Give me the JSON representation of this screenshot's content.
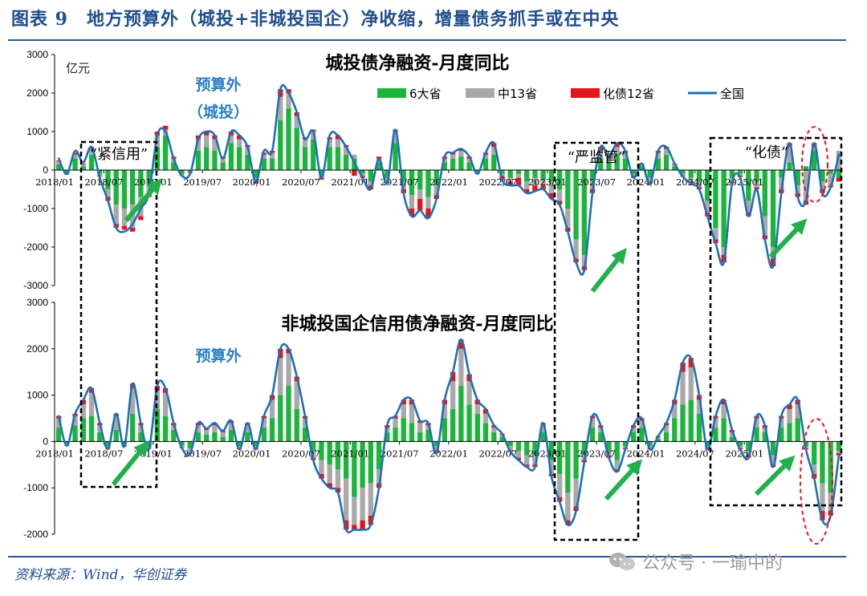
{
  "figure_title": "图表 9　地方预算外（城投+非城投国企）净收缩，增量债务抓手或在中央",
  "source": "资料来源：Wind，华创证券",
  "watermark": "公众号 · 一瑜中的",
  "colors": {
    "s6": "#1cb53c",
    "s13": "#a9a9a9",
    "s12": "#e3141c",
    "line": "#1f6fb5",
    "arrow": "#22b04b",
    "ellipse": "#e3141c",
    "title_blue": "#1f4e8c",
    "anno_blue": "#2a7fc4"
  },
  "chart_data": [
    {
      "type": "bar",
      "title": "城投债净融资-月度同比",
      "unit_label": "亿元",
      "annotation": "预算外\n（城投）",
      "ylim": [
        -3000,
        3000
      ],
      "yticks": [
        -3000,
        -2000,
        -1000,
        0,
        1000,
        2000,
        3000
      ],
      "xtick_labels": [
        "2018/01",
        "2018/07",
        "2019/01",
        "2019/07",
        "2020/01",
        "2020/07",
        "2021/01",
        "2021/07",
        "2022/01",
        "2022/07",
        "2023/01",
        "2023/07",
        "2024/01",
        "2024/07",
        "2025/01"
      ],
      "legend": [
        "6大省",
        "中13省",
        "化债12省",
        "全国"
      ],
      "box_labels": [
        "“紧信用”",
        "“严监管”",
        "“化债”"
      ],
      "series": [
        {
          "name": "6大省",
          "values": [
            150,
            -80,
            300,
            100,
            400,
            -100,
            -500,
            -900,
            -1000,
            -900,
            -700,
            -400,
            600,
            900,
            200,
            -100,
            -50,
            500,
            600,
            500,
            200,
            700,
            600,
            400,
            -200,
            300,
            300,
            1300,
            1600,
            1100,
            600,
            800,
            -150,
            600,
            600,
            400,
            300,
            -100,
            -300,
            200,
            -200,
            700,
            -300,
            -650,
            -500,
            -700,
            -400,
            200,
            300,
            350,
            200,
            -50,
            300,
            400,
            -100,
            -200,
            -100,
            -300,
            -200,
            -250,
            -300,
            -500,
            -1000,
            -1800,
            -2200,
            -300,
            300,
            200,
            400,
            300,
            -100,
            100,
            -200,
            300,
            400,
            100,
            -100,
            -200,
            -300,
            -800,
            -1500,
            -2000,
            -200,
            -100,
            -800,
            -300,
            -1200,
            -2000,
            -200,
            200,
            -400,
            100,
            500,
            -300,
            -100,
            -200
          ]
        },
        {
          "name": "中13省",
          "values": [
            80,
            -30,
            100,
            50,
            150,
            -50,
            -200,
            -500,
            -450,
            -600,
            -500,
            -250,
            300,
            150,
            100,
            -30,
            -30,
            300,
            300,
            300,
            100,
            200,
            200,
            200,
            -100,
            100,
            150,
            600,
            400,
            300,
            200,
            200,
            -50,
            200,
            200,
            200,
            100,
            -50,
            -100,
            100,
            -100,
            300,
            -200,
            -350,
            -250,
            -300,
            -250,
            100,
            100,
            150,
            100,
            -30,
            100,
            200,
            -50,
            -100,
            -100,
            -200,
            -200,
            -150,
            -300,
            -300,
            -500,
            -500,
            -300,
            -200,
            200,
            100,
            200,
            150,
            -50,
            50,
            -100,
            150,
            150,
            50,
            -50,
            -100,
            -150,
            -300,
            -300,
            -200,
            -100,
            -50,
            -300,
            -150,
            -500,
            -300,
            -300,
            400,
            -200,
            -800,
            100,
            -200,
            -300,
            500
          ]
        },
        {
          "name": "化债12省",
          "values": [
            20,
            -10,
            50,
            20,
            50,
            -20,
            -100,
            -100,
            -100,
            -100,
            -100,
            -50,
            100,
            100,
            50,
            -10,
            -10,
            100,
            100,
            100,
            50,
            100,
            100,
            50,
            -50,
            50,
            50,
            200,
            100,
            100,
            50,
            50,
            -50,
            50,
            100,
            50,
            -150,
            -50,
            -100,
            50,
            -50,
            50,
            -100,
            -200,
            -300,
            -250,
            -100,
            50,
            50,
            50,
            50,
            -10,
            50,
            100,
            -100,
            -100,
            -200,
            -100,
            -150,
            -100,
            -150,
            -100,
            -100,
            -100,
            -100,
            -100,
            100,
            50,
            100,
            50,
            -50,
            20,
            -50,
            50,
            50,
            20,
            -20,
            -50,
            -50,
            -100,
            -100,
            -200,
            -50,
            -30,
            -100,
            -50,
            -100,
            -200,
            -100,
            100,
            -100,
            -100,
            100,
            -100,
            -50,
            -100
          ]
        },
        {
          "name": "全国",
          "type": "line",
          "values": [
            300,
            -100,
            500,
            200,
            600,
            -200,
            -800,
            -1500,
            -1600,
            -1400,
            -1000,
            -600,
            900,
            1000,
            300,
            -150,
            -100,
            800,
            1000,
            900,
            300,
            1000,
            900,
            600,
            -300,
            500,
            500,
            2100,
            2000,
            1500,
            800,
            1000,
            -200,
            900,
            900,
            600,
            200,
            -200,
            -500,
            300,
            -350,
            1050,
            -600,
            -1200,
            -1050,
            -1250,
            -750,
            350,
            450,
            550,
            350,
            -100,
            450,
            700,
            -250,
            -400,
            -400,
            -600,
            -550,
            -500,
            -750,
            -900,
            -1600,
            -2400,
            -2600,
            -600,
            600,
            350,
            700,
            500,
            -200,
            170,
            -350,
            500,
            600,
            170,
            -170,
            -350,
            -500,
            -1200,
            -1900,
            -2400,
            -350,
            -200,
            -1200,
            -500,
            -1800,
            -2500,
            -600,
            700,
            -700,
            -800,
            700,
            -600,
            -450,
            400
          ]
        }
      ]
    },
    {
      "type": "bar",
      "title": "非城投国企信用债净融资-月度同比",
      "annotation": "预算外",
      "ylim": [
        -2000,
        3000
      ],
      "yticks": [
        -2000,
        -1000,
        0,
        1000,
        2000,
        3000
      ],
      "xtick_labels": [
        "2018/01",
        "2018/07",
        "2019/01",
        "2019/07",
        "2020/01",
        "2020/07",
        "2021/01",
        "2021/07",
        "2022/01",
        "2022/07",
        "2023/01",
        "2023/07",
        "2024/01",
        "2024/07",
        "2025/01"
      ],
      "series": [
        {
          "name": "6大省",
          "values": [
            300,
            -50,
            350,
            500,
            550,
            200,
            -100,
            250,
            -50,
            600,
            200,
            -100,
            700,
            550,
            250,
            -80,
            -150,
            200,
            150,
            200,
            100,
            250,
            -100,
            200,
            -100,
            300,
            500,
            1000,
            1200,
            700,
            300,
            -200,
            -400,
            -500,
            -600,
            -800,
            -1200,
            -1000,
            -900,
            -600,
            200,
            300,
            500,
            400,
            200,
            250,
            -100,
            500,
            700,
            1200,
            800,
            600,
            400,
            200,
            100,
            -100,
            -200,
            -300,
            -300,
            200,
            -400,
            -700,
            -1100,
            -800,
            -300,
            300,
            200,
            -200,
            -400,
            -100,
            200,
            300,
            -100,
            50,
            200,
            500,
            800,
            900,
            600,
            -100,
            300,
            500,
            100,
            -100,
            -200,
            300,
            200,
            -300,
            300,
            400,
            500,
            -100,
            -500,
            -900,
            -1100,
            -200
          ]
        },
        {
          "name": "中13省",
          "values": [
            200,
            -30,
            200,
            300,
            500,
            150,
            -50,
            300,
            -50,
            550,
            150,
            -50,
            400,
            500,
            100,
            -50,
            -100,
            150,
            100,
            150,
            100,
            150,
            -50,
            150,
            -50,
            200,
            400,
            800,
            700,
            600,
            200,
            -150,
            -300,
            -400,
            -400,
            -900,
            -600,
            -700,
            -700,
            -300,
            100,
            200,
            300,
            400,
            200,
            100,
            -100,
            300,
            600,
            800,
            500,
            200,
            200,
            100,
            50,
            -100,
            -150,
            -200,
            -200,
            150,
            -300,
            -500,
            -600,
            -600,
            -100,
            200,
            100,
            -100,
            -200,
            -50,
            100,
            150,
            -50,
            50,
            150,
            300,
            700,
            700,
            300,
            -50,
            200,
            300,
            100,
            -50,
            -100,
            200,
            100,
            -200,
            200,
            300,
            300,
            -50,
            -200,
            -600,
            -400,
            -50
          ]
        },
        {
          "name": "化债12省",
          "values": [
            50,
            -10,
            50,
            100,
            100,
            50,
            -10,
            50,
            -10,
            100,
            50,
            -10,
            100,
            100,
            50,
            -10,
            -20,
            50,
            30,
            50,
            30,
            50,
            -20,
            50,
            -20,
            50,
            100,
            200,
            100,
            100,
            50,
            -50,
            -100,
            -100,
            -100,
            -200,
            -100,
            -200,
            -200,
            -100,
            50,
            50,
            100,
            100,
            50,
            50,
            -50,
            100,
            200,
            200,
            150,
            100,
            100,
            50,
            20,
            -20,
            -50,
            -50,
            -50,
            50,
            -50,
            -100,
            -100,
            -100,
            -50,
            50,
            50,
            -50,
            -50,
            -20,
            50,
            50,
            -20,
            20,
            50,
            100,
            200,
            200,
            100,
            -20,
            50,
            100,
            50,
            -20,
            -50,
            50,
            50,
            -50,
            50,
            100,
            100,
            -20,
            -100,
            -200,
            -100,
            -50
          ]
        },
        {
          "name": "全国",
          "type": "line",
          "values": [
            550,
            -90,
            600,
            900,
            1150,
            400,
            -160,
            600,
            -110,
            1250,
            400,
            -160,
            1200,
            1150,
            400,
            -140,
            -270,
            400,
            280,
            400,
            230,
            450,
            -170,
            400,
            -170,
            550,
            1000,
            2000,
            2000,
            1400,
            550,
            -400,
            -800,
            -1000,
            -1100,
            -1900,
            -1900,
            -1900,
            -1800,
            -1000,
            350,
            550,
            900,
            900,
            450,
            400,
            -250,
            900,
            1500,
            2200,
            1450,
            900,
            700,
            350,
            170,
            -220,
            -400,
            -550,
            -550,
            400,
            -750,
            -1300,
            -1800,
            -1500,
            -450,
            550,
            350,
            -350,
            -650,
            -170,
            350,
            500,
            -170,
            120,
            400,
            900,
            1700,
            1800,
            1000,
            -170,
            550,
            900,
            250,
            -170,
            -350,
            550,
            350,
            -550,
            550,
            800,
            900,
            -170,
            -800,
            -1700,
            -1600,
            -300
          ]
        }
      ]
    }
  ]
}
